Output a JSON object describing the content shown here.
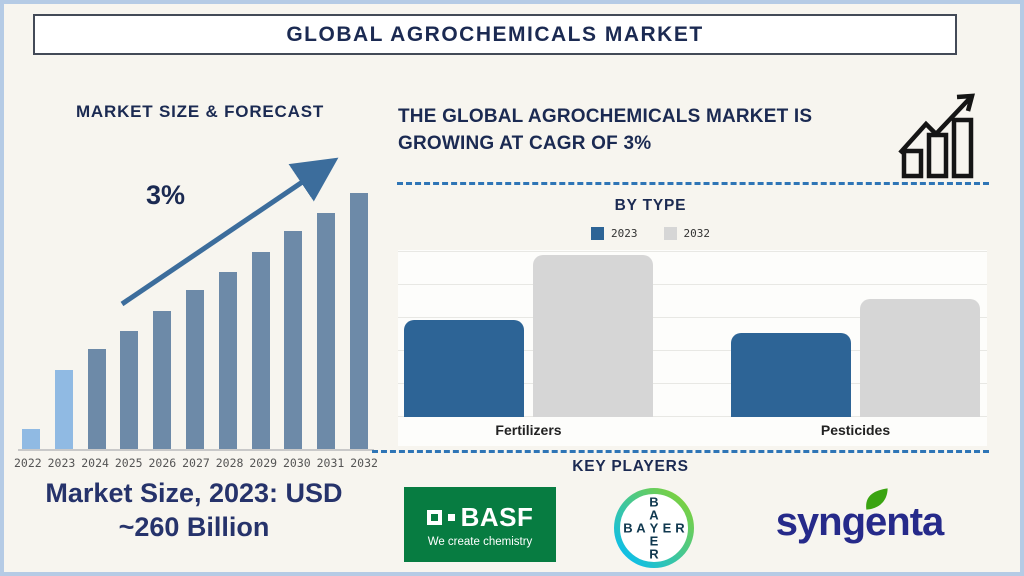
{
  "title": "GLOBAL AGROCHEMICALS MARKET",
  "left_panel": {
    "heading": "MARKET SIZE & FORECAST",
    "cagr_label": "3%",
    "caption_line1": "Market Size, 2023: USD",
    "caption_line2": "~260 Billion"
  },
  "right_panel": {
    "heading": "THE GLOBAL AGROCHEMICALS MARKET IS GROWING AT CAGR OF 3%",
    "by_type": {
      "title": "BY TYPE",
      "legend": [
        {
          "label": "2023",
          "color": "#2d6496"
        },
        {
          "label": "2032",
          "color": "#d6d6d6"
        }
      ]
    },
    "key_players": {
      "title": "KEY PLAYERS",
      "players": [
        "BASF",
        "Bayer",
        "Syngenta"
      ],
      "basf": {
        "name": "BASF",
        "tagline": "We create chemistry",
        "brand_green": "#077c41"
      },
      "bayer": {
        "name": "BAYER",
        "cross_color": "#10384f",
        "ring_green": "#89d329",
        "ring_blue": "#00bcff"
      },
      "syngenta": {
        "name": "syngenta",
        "wordmark_color": "#262a8a",
        "leaf_color": "#3aa411"
      }
    }
  },
  "chart_data": [
    {
      "type": "bar",
      "title": "MARKET SIZE & FORECAST",
      "categories": [
        "2022",
        "2023",
        "2024",
        "2025",
        "2026",
        "2027",
        "2028",
        "2029",
        "2030",
        "2031",
        "2032"
      ],
      "values_relative_pct_of_max": [
        8,
        31,
        39,
        46,
        54,
        62,
        69,
        77,
        85,
        92,
        100
      ],
      "highlighted_categories": [
        "2022",
        "2023"
      ],
      "annotations": [
        "3%",
        "Market Size, 2023: USD ~260 Billion"
      ],
      "cagr": "3%",
      "xlabel": "",
      "ylabel": "",
      "axis_values_labeled": false,
      "bar_color": "#6d8aa8",
      "highlight_bar_color": "#90bae3",
      "trend_arrow": "up",
      "legend_position": "none",
      "grid": false
    },
    {
      "type": "bar",
      "title": "BY TYPE",
      "categories": [
        "Fertilizers",
        "Pesticides"
      ],
      "series": [
        {
          "name": "2023",
          "color": "#2d6496",
          "values_relative_pct_of_max": [
            60,
            52
          ]
        },
        {
          "name": "2032",
          "color": "#d6d6d6",
          "values_relative_pct_of_max": [
            100,
            73
          ]
        }
      ],
      "xlabel": "",
      "ylabel": "",
      "axis_values_labeled": false,
      "grid": true,
      "gridline_count": 6,
      "legend_position": "top"
    }
  ],
  "colors": {
    "page_background": "#f7f5ef",
    "outer_border": "#b5cbe5",
    "heading_navy": "#1b2a52",
    "caption_navy": "#26336b",
    "dashed_line_blue": "#2e75b6",
    "arrow_blue": "#3c6d9c",
    "axis_gray": "#c9c9c9",
    "year_label_gray": "#555555"
  }
}
